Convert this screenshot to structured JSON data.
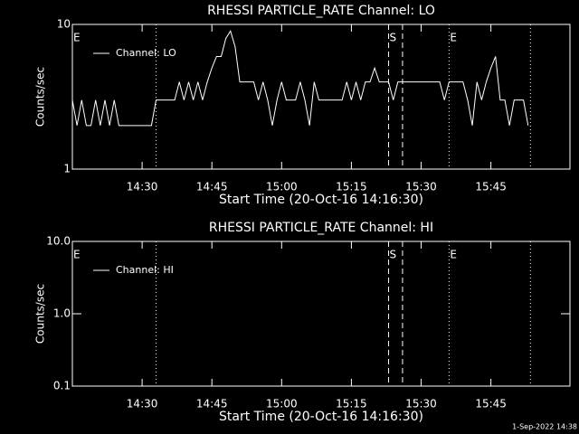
{
  "chart_data": [
    {
      "type": "line",
      "title": "RHESSI PARTICLE_RATE Channel: LO",
      "xlabel": "Start Time (20-Oct-16 14:16:30)",
      "ylabel": "Counts/sec",
      "log_y": true,
      "legend": "upper left",
      "xlim": [
        855,
        962
      ],
      "xticks": [
        {
          "value": 870,
          "label": "14:30"
        },
        {
          "value": 885,
          "label": "14:45"
        },
        {
          "value": 900,
          "label": "15:00"
        },
        {
          "value": 915,
          "label": "15:15"
        },
        {
          "value": 930,
          "label": "15:30"
        },
        {
          "value": 945,
          "label": "15:45"
        }
      ],
      "ylim": [
        1,
        10
      ],
      "yticks": [
        1,
        10
      ],
      "markers": [
        {
          "x": 873,
          "style": "dotted"
        },
        {
          "x": 923,
          "style": "dashed"
        },
        {
          "x": 926,
          "style": "dashed"
        },
        {
          "x": 936,
          "style": "dotted"
        },
        {
          "x": 953.5,
          "style": "dotted"
        }
      ],
      "annotations": [
        {
          "text": "E",
          "x": 855
        },
        {
          "text": "S",
          "x": 923
        },
        {
          "text": "E",
          "x": 936
        }
      ],
      "series": [
        {
          "name": "Channel: LO",
          "color": "#ffffff",
          "x": [
            855,
            856,
            857,
            858,
            859,
            860,
            861,
            862,
            863,
            864,
            865,
            866,
            867,
            868,
            869,
            870,
            871,
            872,
            873,
            874,
            875,
            876,
            877,
            878,
            879,
            880,
            881,
            882,
            883,
            884,
            885,
            886,
            887,
            888,
            889,
            890,
            891,
            892,
            893,
            894,
            895,
            896,
            897,
            898,
            899,
            900,
            901,
            902,
            903,
            904,
            905,
            906,
            907,
            908,
            909,
            910,
            911,
            912,
            913,
            914,
            915,
            916,
            917,
            918,
            919,
            920,
            921,
            922,
            923,
            924,
            925,
            926,
            927,
            928,
            929,
            930,
            931,
            932,
            933,
            934,
            935,
            936,
            937,
            938,
            939,
            940,
            941,
            942,
            943,
            944,
            945,
            946,
            947,
            948,
            949,
            950,
            951,
            952,
            953
          ],
          "values": [
            3,
            2,
            3,
            2,
            2,
            3,
            2,
            3,
            2,
            3,
            2,
            2,
            2,
            2,
            2,
            2,
            2,
            2,
            3,
            3,
            3,
            3,
            3,
            4,
            3,
            4,
            3,
            4,
            3,
            4,
            5,
            6,
            6,
            8,
            9,
            7,
            4,
            4,
            4,
            4,
            3,
            4,
            3,
            2,
            3,
            4,
            3,
            3,
            3,
            4,
            3,
            2,
            4,
            3,
            3,
            3,
            3,
            3,
            3,
            4,
            3,
            4,
            3,
            4,
            4,
            5,
            4,
            4,
            4,
            3,
            4,
            4,
            4,
            4,
            4,
            4,
            4,
            4,
            4,
            4,
            3,
            4,
            4,
            4,
            4,
            3,
            2,
            4,
            3,
            4,
            5,
            6,
            3,
            3,
            2,
            3,
            3,
            3,
            2
          ]
        }
      ]
    },
    {
      "type": "line",
      "title": "RHESSI PARTICLE_RATE Channel: HI",
      "xlabel": "Start Time (20-Oct-16 14:16:30)",
      "ylabel": "Counts/sec",
      "log_y": true,
      "legend": "upper left",
      "xlim": [
        855,
        962
      ],
      "xticks": [
        {
          "value": 870,
          "label": "14:30"
        },
        {
          "value": 885,
          "label": "14:45"
        },
        {
          "value": 900,
          "label": "15:00"
        },
        {
          "value": 915,
          "label": "15:15"
        },
        {
          "value": 930,
          "label": "15:30"
        },
        {
          "value": 945,
          "label": "15:45"
        }
      ],
      "ylim": [
        0.1,
        10
      ],
      "yticks": [
        0.1,
        {
          "value": 1,
          "label": "1.0"
        },
        {
          "value": 10,
          "label": "10.0"
        }
      ],
      "markers": [
        {
          "x": 873,
          "style": "dotted"
        },
        {
          "x": 923,
          "style": "dashed"
        },
        {
          "x": 926,
          "style": "dashed"
        },
        {
          "x": 936,
          "style": "dotted"
        },
        {
          "x": 953.5,
          "style": "dotted"
        }
      ],
      "annotations": [
        {
          "text": "E",
          "x": 855
        },
        {
          "text": "S",
          "x": 923
        },
        {
          "text": "E",
          "x": 936
        }
      ],
      "series": [
        {
          "name": "Channel: HI",
          "color": "#ffffff",
          "x": [],
          "values": []
        }
      ]
    }
  ],
  "footer": "1-Sep-2022 14:38"
}
